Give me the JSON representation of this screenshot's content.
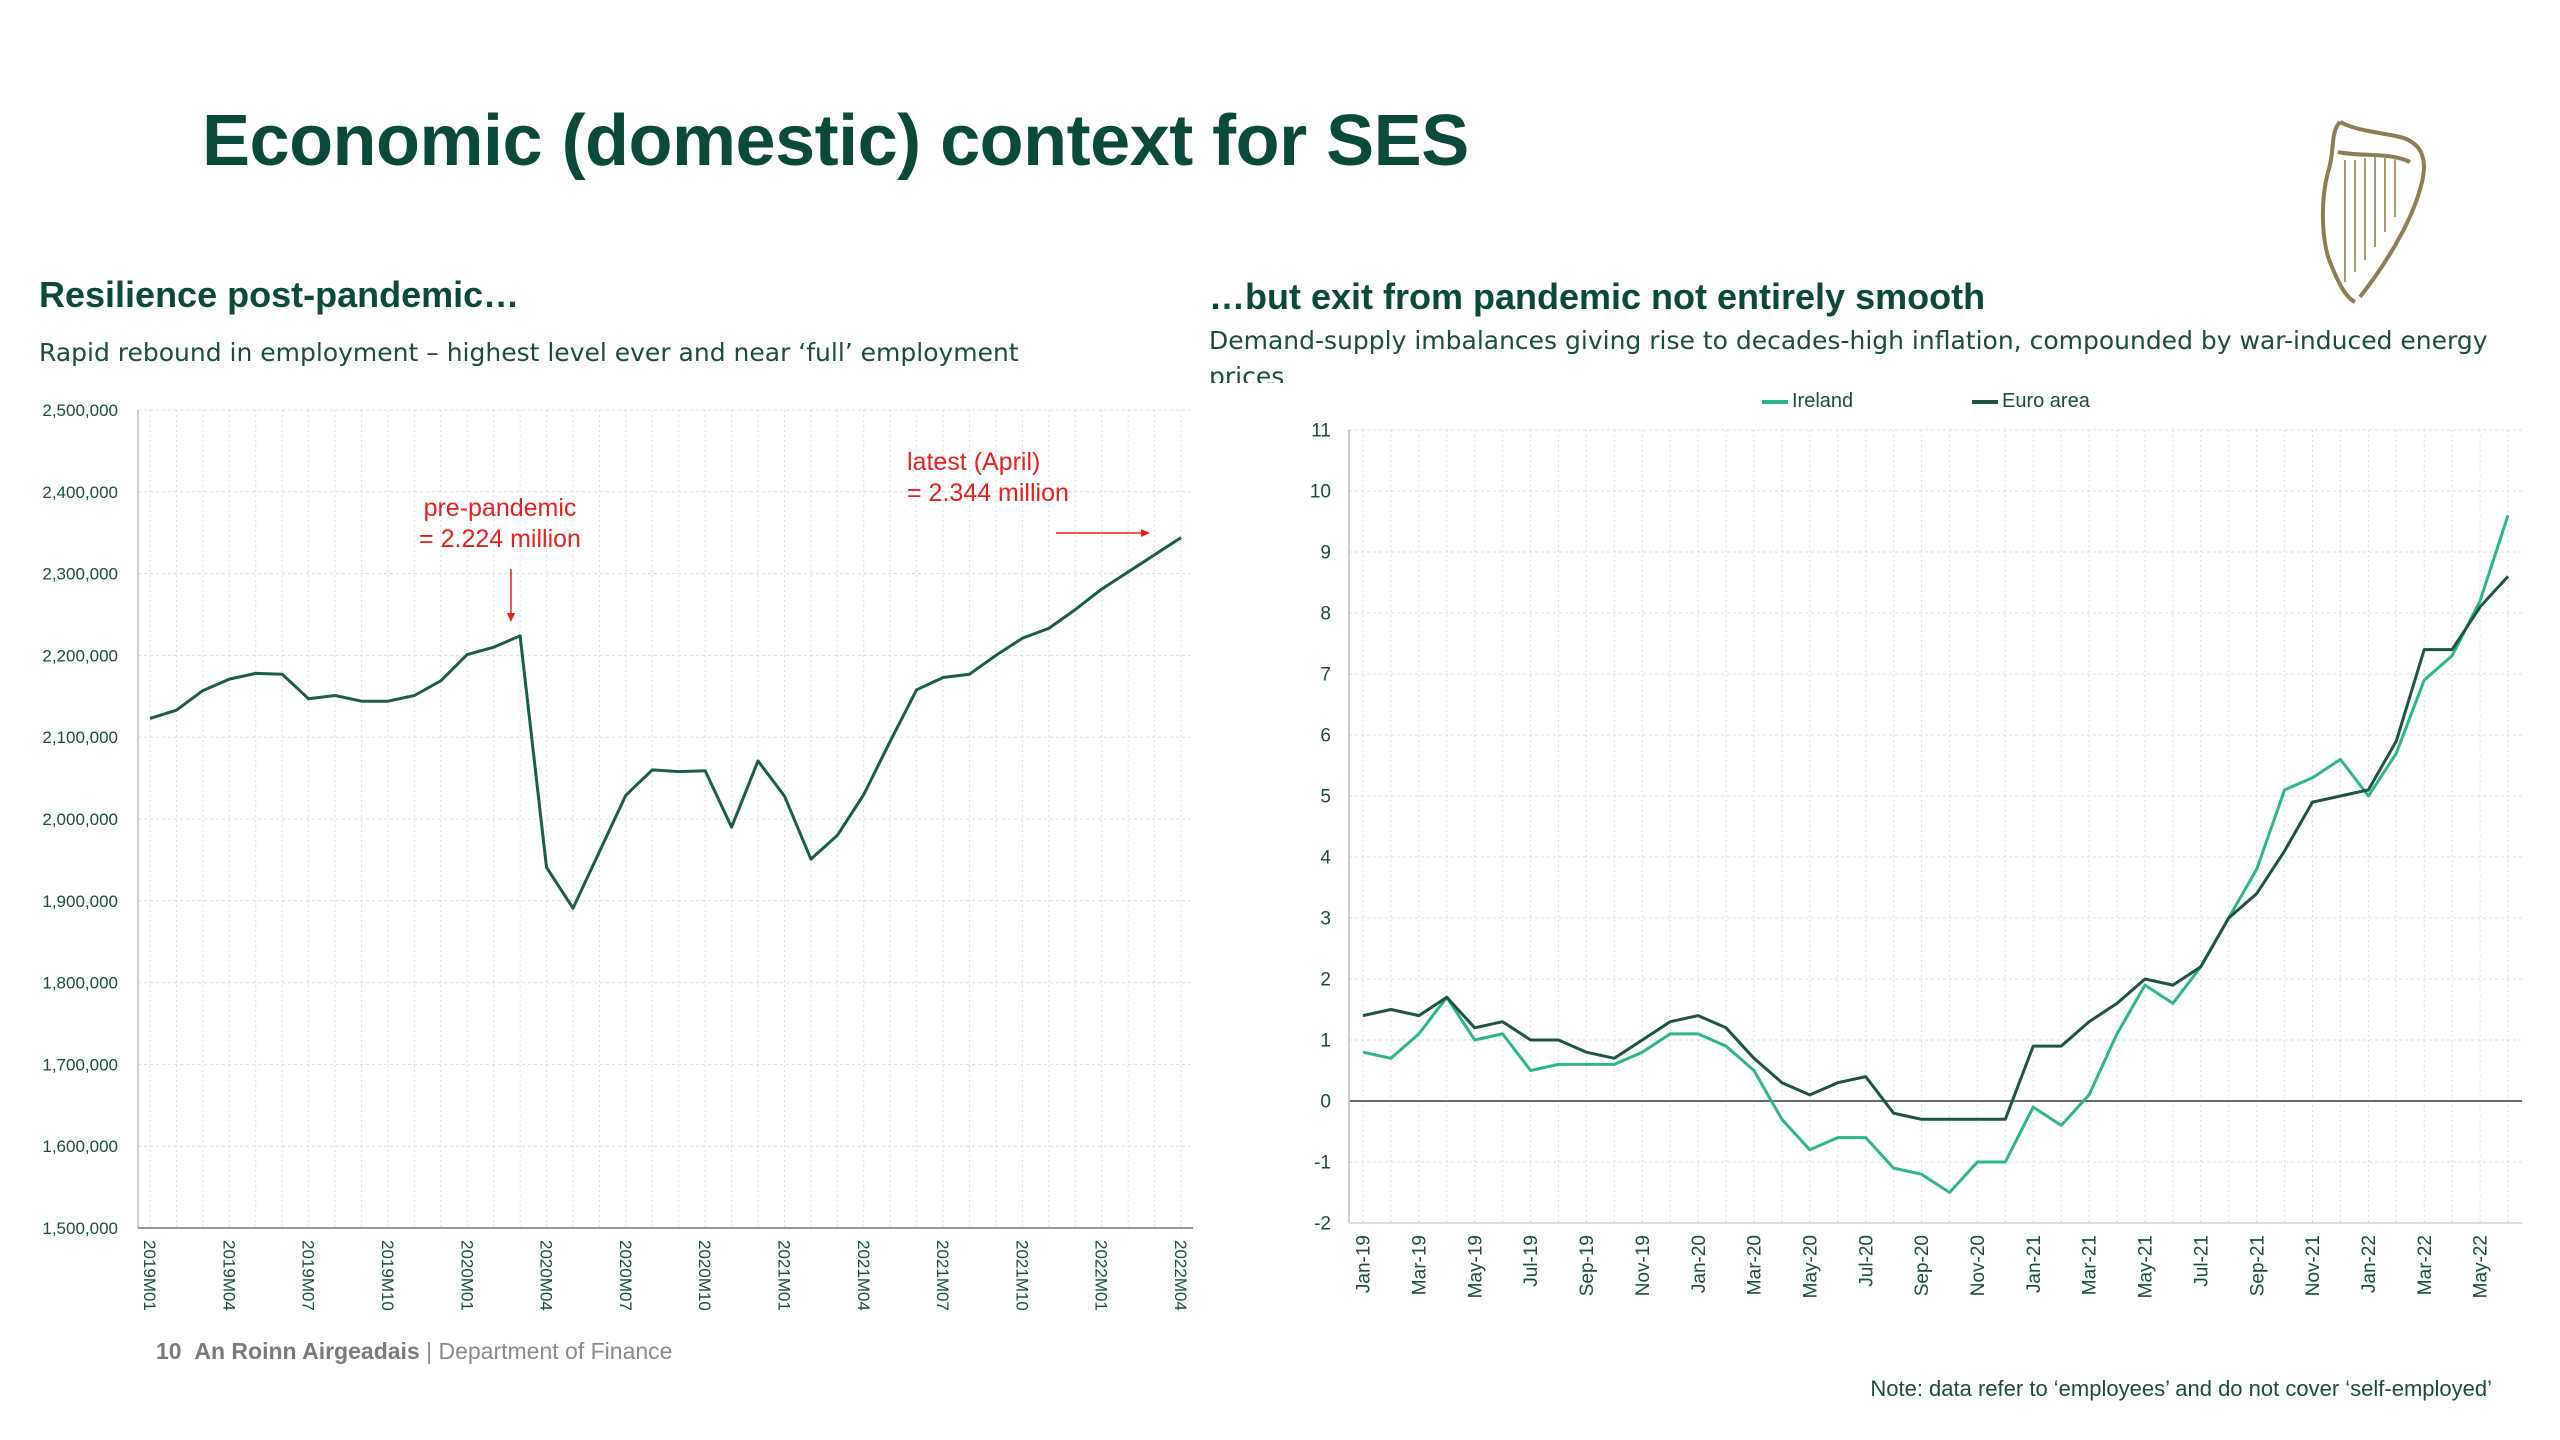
{
  "title": "Economic (domestic) context for SES",
  "left": {
    "heading": "Resilience post-pandemic…",
    "subtitle": "Rapid rebound in employment – highest level ever and near ‘full’ employment",
    "annotations": {
      "pre_pandemic_line1": "pre-pandemic",
      "pre_pandemic_line2": "= 2.224 million",
      "latest_line1": "latest (April)",
      "latest_line2": "= 2.344 million"
    }
  },
  "right": {
    "heading": "…but exit from pandemic not entirely smooth",
    "subtitle": "Demand-supply imbalances giving rise to decades-high inflation, compounded by war-induced energy prices",
    "note": "Note: data refer to ‘employees’ and do not cover ‘self-employed’"
  },
  "footer": {
    "page_number": "10",
    "org_irish": "An Roinn Airgeadais",
    "separator": "|",
    "org_english": "Department of Finance"
  },
  "logo": {
    "name": "harp-logo"
  },
  "colors": {
    "title": "#0b4a3a",
    "employment_line": "#1b5c4b",
    "annotation": "#e8201f",
    "ireland": "#2db68c",
    "euro_area": "#1d5444",
    "grid": "#dcdcdc",
    "axis": "#555555"
  },
  "chart_data": [
    {
      "type": "line",
      "title": "",
      "xlabel": "",
      "ylabel": "",
      "ylim": [
        1500000,
        2500000
      ],
      "yticks": [
        "1,500,000",
        "1,600,000",
        "1,700,000",
        "1,800,000",
        "1,900,000",
        "2,000,000",
        "2,100,000",
        "2,200,000",
        "2,300,000",
        "2,400,000",
        "2,500,000"
      ],
      "grid": true,
      "categories": [
        "2019M01",
        "2019M02",
        "2019M03",
        "2019M04",
        "2019M05",
        "2019M06",
        "2019M07",
        "2019M08",
        "2019M09",
        "2019M10",
        "2019M11",
        "2019M12",
        "2020M01",
        "2020M02",
        "2020M03",
        "2020M04",
        "2020M05",
        "2020M06",
        "2020M07",
        "2020M08",
        "2020M09",
        "2020M10",
        "2020M11",
        "2020M12",
        "2021M01",
        "2021M02",
        "2021M03",
        "2021M04",
        "2021M05",
        "2021M06",
        "2021M07",
        "2021M08",
        "2021M09",
        "2021M10",
        "2021M11",
        "2021M12",
        "2022M01",
        "2022M02",
        "2022M03",
        "2022M04"
      ],
      "xtick_labels": [
        "2019M01",
        "2019M04",
        "2019M07",
        "2019M10",
        "2020M01",
        "2020M04",
        "2020M07",
        "2020M10",
        "2021M01",
        "2021M04",
        "2021M07",
        "2021M10",
        "2022M01",
        "2022M04"
      ],
      "series": [
        {
          "values": [
            2123000,
            2133000,
            2157000,
            2171000,
            2178000,
            2177000,
            2147000,
            2151000,
            2144000,
            2144000,
            2151000,
            2169000,
            2201000,
            2210000,
            2224000,
            1941000,
            1891000,
            1960000,
            2029000,
            2060000,
            2058000,
            2059000,
            1990000,
            2071000,
            2028000,
            1951000,
            1980000,
            2030000,
            2095000,
            2158000,
            2173000,
            2177000,
            2200000,
            2221000,
            2233000,
            2256000,
            2281000,
            2302000,
            2323000,
            2344000
          ]
        }
      ]
    },
    {
      "type": "line",
      "title": "",
      "xlabel": "",
      "ylabel": "",
      "ylim": [
        -2,
        11
      ],
      "yticks": [
        "-2",
        "-1",
        "0",
        "1",
        "2",
        "3",
        "4",
        "5",
        "6",
        "7",
        "8",
        "9",
        "10",
        "11"
      ],
      "grid": true,
      "legend": "top",
      "categories": [
        "Jan-19",
        "Feb-19",
        "Mar-19",
        "Apr-19",
        "May-19",
        "Jun-19",
        "Jul-19",
        "Aug-19",
        "Sep-19",
        "Oct-19",
        "Nov-19",
        "Dec-19",
        "Jan-20",
        "Feb-20",
        "Mar-20",
        "Apr-20",
        "May-20",
        "Jun-20",
        "Jul-20",
        "Aug-20",
        "Sep-20",
        "Oct-20",
        "Nov-20",
        "Dec-20",
        "Jan-21",
        "Feb-21",
        "Mar-21",
        "Apr-21",
        "May-21",
        "Jun-21",
        "Jul-21",
        "Aug-21",
        "Sep-21",
        "Oct-21",
        "Nov-21",
        "Dec-21",
        "Jan-22",
        "Feb-22",
        "Mar-22",
        "Apr-22",
        "May-22",
        "Jun-22"
      ],
      "xtick_labels": [
        "Jan-19",
        "Mar-19",
        "May-19",
        "Jul-19",
        "Sep-19",
        "Nov-19",
        "Jan-20",
        "Mar-20",
        "May-20",
        "Jul-20",
        "Sep-20",
        "Nov-20",
        "Jan-21",
        "Mar-21",
        "May-21",
        "Jul-21",
        "Sep-21",
        "Nov-21",
        "Jan-22",
        "Mar-22",
        "May-22"
      ],
      "series": [
        {
          "name": "Ireland",
          "values": [
            0.8,
            0.7,
            1.1,
            1.7,
            1.0,
            1.1,
            0.5,
            0.6,
            0.6,
            0.6,
            0.8,
            1.1,
            1.1,
            0.9,
            0.5,
            -0.3,
            -0.8,
            -0.6,
            -0.6,
            -1.1,
            -1.2,
            -1.5,
            -1.0,
            -1.0,
            -0.1,
            -0.4,
            0.1,
            1.1,
            1.9,
            1.6,
            2.2,
            3.0,
            3.8,
            5.1,
            5.3,
            5.6,
            5.0,
            5.7,
            6.9,
            7.3,
            8.2,
            9.6
          ]
        },
        {
          "name": "Euro area",
          "values": [
            1.4,
            1.5,
            1.4,
            1.7,
            1.2,
            1.3,
            1.0,
            1.0,
            0.8,
            0.7,
            1.0,
            1.3,
            1.4,
            1.2,
            0.7,
            0.3,
            0.1,
            0.3,
            0.4,
            -0.2,
            -0.3,
            -0.3,
            -0.3,
            -0.3,
            0.9,
            0.9,
            1.3,
            1.6,
            2.0,
            1.9,
            2.2,
            3.0,
            3.4,
            4.1,
            4.9,
            5.0,
            5.1,
            5.9,
            7.4,
            7.4,
            8.1,
            8.6
          ]
        }
      ]
    }
  ]
}
